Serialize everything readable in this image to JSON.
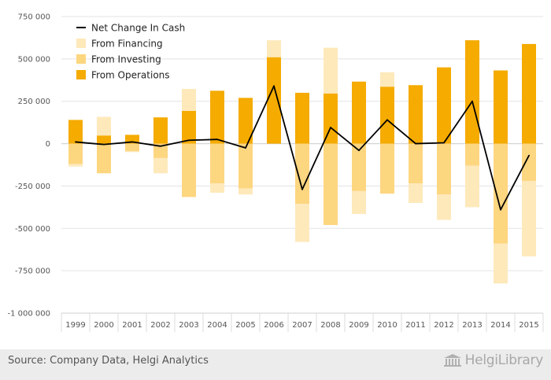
{
  "chart_data": {
    "type": "bar",
    "categories": [
      "1999",
      "2000",
      "2001",
      "2002",
      "2003",
      "2004",
      "2005",
      "2006",
      "2007",
      "2008",
      "2009",
      "2010",
      "2011",
      "2012",
      "2013",
      "2014",
      "2015"
    ],
    "series": [
      {
        "name": "From Operations",
        "kind": "bar",
        "color": "#f5ab00",
        "values": [
          140000,
          48000,
          52000,
          155000,
          193000,
          312000,
          270000,
          510000,
          300000,
          296000,
          366000,
          336000,
          345000,
          450000,
          610000,
          432000,
          588000
        ]
      },
      {
        "name": "From Investing",
        "kind": "bar",
        "color": "#fdd680",
        "values": [
          -120000,
          -175000,
          -45000,
          -85000,
          -315000,
          -235000,
          -265000,
          0,
          -355000,
          -480000,
          -280000,
          -295000,
          -235000,
          -300000,
          -130000,
          -590000,
          -220000
        ]
      },
      {
        "name": "From Financing",
        "kind": "bar",
        "color": "#fee9bb",
        "values": [
          -15000,
          110000,
          -5000,
          -90000,
          130000,
          -55000,
          -35000,
          100000,
          -225000,
          270000,
          -135000,
          85000,
          -115000,
          -150000,
          -245000,
          -235000,
          -445000
        ]
      },
      {
        "name": "Net Change In Cash",
        "kind": "line",
        "color": "#000000",
        "values": [
          10000,
          -5000,
          10000,
          -15000,
          20000,
          25000,
          -25000,
          340000,
          -270000,
          95000,
          -40000,
          140000,
          0,
          5000,
          250000,
          -390000,
          -70000
        ]
      }
    ],
    "ylim": [
      -1000000,
      750000
    ],
    "yticks": [
      750000,
      500000,
      250000,
      0,
      -250000,
      -500000,
      -750000,
      -1000000
    ],
    "ytick_labels": [
      "750 000",
      "500 000",
      "250 000",
      "0",
      "-250 000",
      "-500 000",
      "-750 000",
      "-1 000 000"
    ],
    "legend": {
      "position": "top-left",
      "items": [
        {
          "label": "Net Change In Cash",
          "color": "#000000",
          "marker": "line"
        },
        {
          "label": "From Financing",
          "color": "#fee9bb",
          "marker": "square"
        },
        {
          "label": "From Investing",
          "color": "#fdd680",
          "marker": "square"
        },
        {
          "label": "From Operations",
          "color": "#f5ab00",
          "marker": "square"
        }
      ]
    },
    "grid": true,
    "stacked": true
  },
  "footer": {
    "source": "Source: Company Data, Helgi Analytics",
    "brand": "HelgiLibrary",
    "brand_icon": "building-icon"
  }
}
